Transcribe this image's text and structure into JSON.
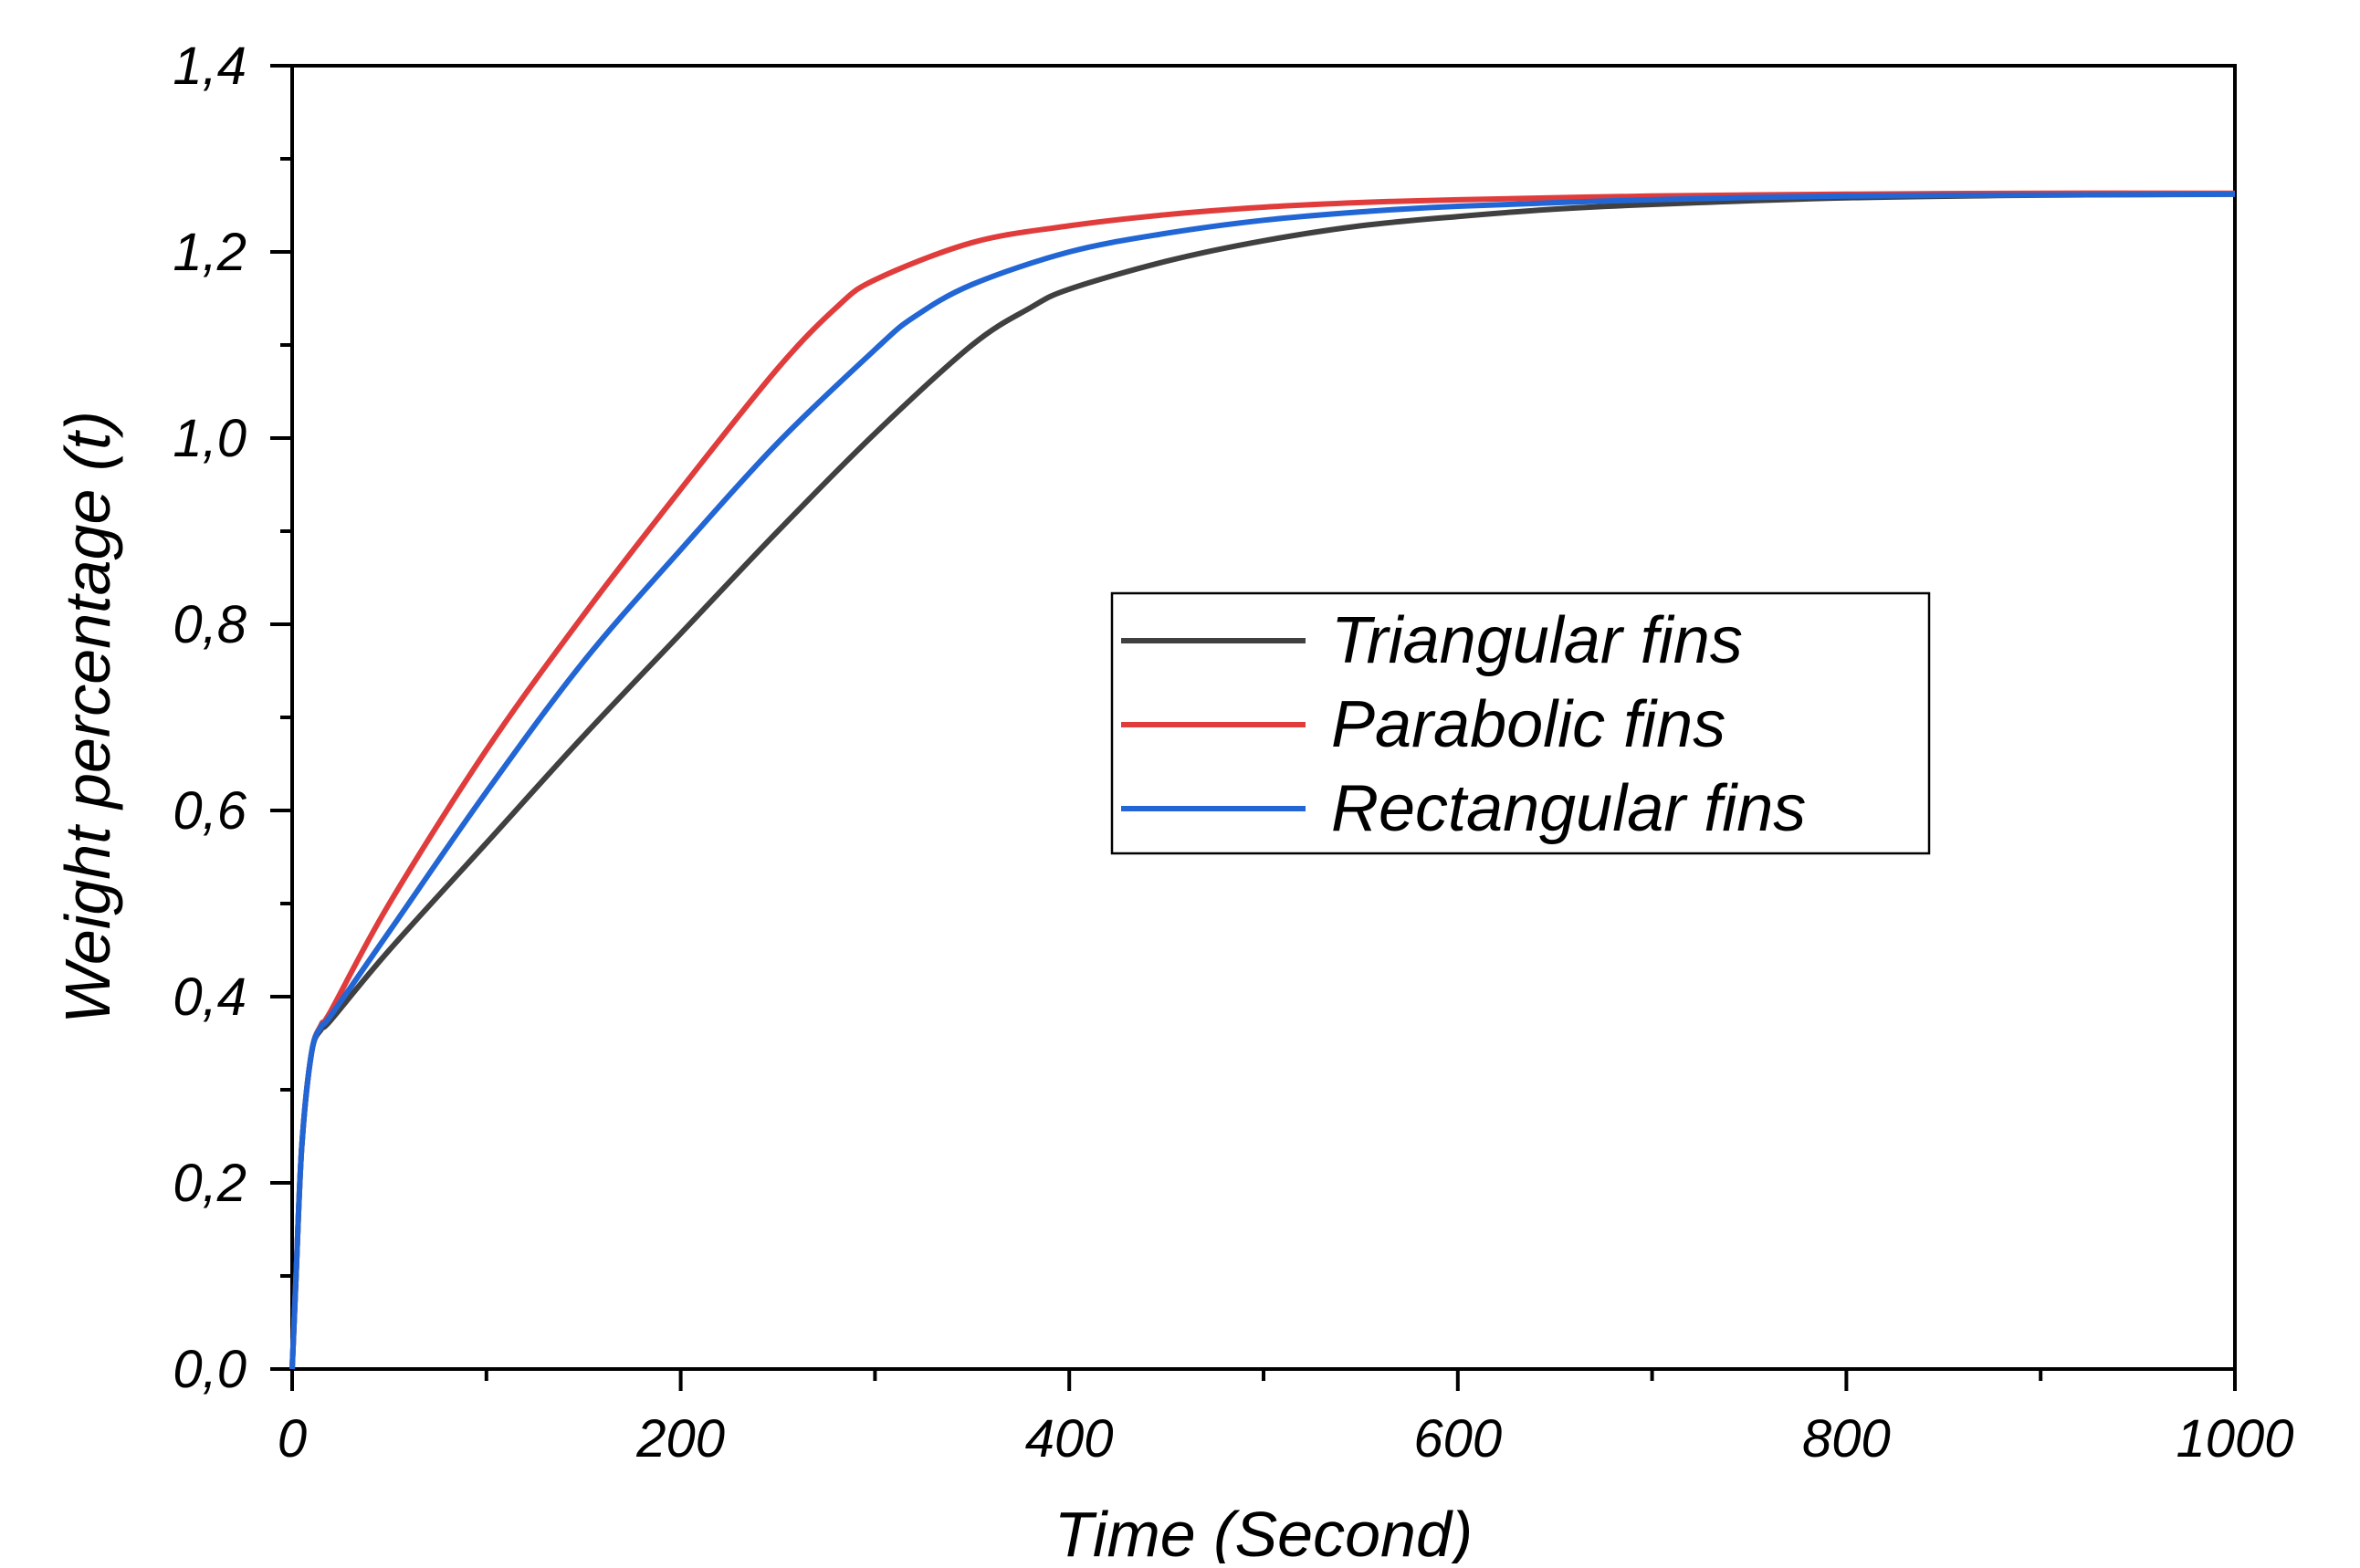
{
  "chart_data": {
    "type": "line",
    "title": "",
    "xlabel": "Time (Second)",
    "ylabel": "Weight percentage (t)",
    "xlim": [
      0,
      1000
    ],
    "ylim": [
      0,
      1.4
    ],
    "x_ticks": [
      0,
      200,
      400,
      600,
      800,
      1000
    ],
    "x_tick_labels": [
      "0",
      "200",
      "400",
      "600",
      "800",
      "1000"
    ],
    "y_ticks": [
      0,
      0.2,
      0.4,
      0.6,
      0.8,
      1.0,
      1.2,
      1.4
    ],
    "y_tick_labels": [
      "0,0",
      "0,2",
      "0,4",
      "0,6",
      "0,8",
      "1,0",
      "1,2",
      "1,4"
    ],
    "grid": false,
    "legend_position": "center-right",
    "series": [
      {
        "name": "Triangular fins",
        "color": "#404040",
        "x": [
          0,
          2,
          5,
          10,
          15,
          20,
          50,
          100,
          150,
          200,
          250,
          300,
          350,
          380,
          400,
          450,
          500,
          550,
          600,
          650,
          700,
          800,
          900,
          1000
        ],
        "y": [
          0,
          0.1,
          0.24,
          0.34,
          0.365,
          0.375,
          0.45,
          0.565,
          0.68,
          0.79,
          0.9,
          1.005,
          1.1,
          1.14,
          1.16,
          1.19,
          1.212,
          1.228,
          1.238,
          1.246,
          1.251,
          1.258,
          1.261,
          1.262
        ]
      },
      {
        "name": "Parabolic fins",
        "color": "#e03c3c",
        "x": [
          0,
          2,
          5,
          10,
          15,
          20,
          50,
          100,
          150,
          200,
          250,
          280,
          300,
          350,
          400,
          450,
          500,
          550,
          600,
          700,
          800,
          900,
          1000
        ],
        "y": [
          0,
          0.1,
          0.24,
          0.34,
          0.37,
          0.385,
          0.5,
          0.665,
          0.81,
          0.945,
          1.075,
          1.14,
          1.17,
          1.21,
          1.228,
          1.24,
          1.248,
          1.253,
          1.256,
          1.26,
          1.262,
          1.263,
          1.263
        ]
      },
      {
        "name": "Rectangular fins",
        "color": "#2166d4",
        "x": [
          0,
          2,
          5,
          10,
          15,
          20,
          50,
          100,
          150,
          200,
          250,
          300,
          320,
          350,
          400,
          450,
          500,
          550,
          600,
          700,
          800,
          900,
          1000
        ],
        "y": [
          0,
          0.1,
          0.24,
          0.34,
          0.368,
          0.38,
          0.47,
          0.62,
          0.76,
          0.88,
          0.995,
          1.095,
          1.13,
          1.165,
          1.2,
          1.22,
          1.234,
          1.243,
          1.249,
          1.256,
          1.26,
          1.261,
          1.262
        ]
      }
    ]
  }
}
